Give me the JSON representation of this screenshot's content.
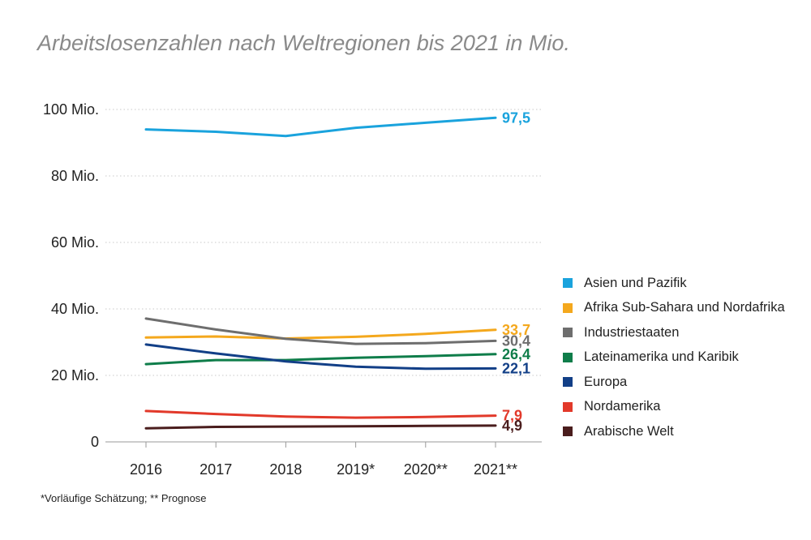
{
  "title": "Arbeitslosenzahlen nach Weltregionen bis 2021 in Mio.",
  "footnote": "*Vorläufige Schätzung; ** Prognose",
  "chart_data": {
    "type": "line",
    "title": "Arbeitslosenzahlen nach Weltregionen bis 2021 in Mio.",
    "xlabel": "",
    "ylabel": "",
    "categories": [
      "2016",
      "2017",
      "2018",
      "2019*",
      "2020**",
      "2021**"
    ],
    "ylim": [
      0,
      100
    ],
    "yticks": [
      {
        "value": 0,
        "label": "0"
      },
      {
        "value": 20,
        "label": "20 Mio."
      },
      {
        "value": 40,
        "label": "40 Mio."
      },
      {
        "value": 60,
        "label": "60 Mio."
      },
      {
        "value": 80,
        "label": "80 Mio."
      },
      {
        "value": 100,
        "label": "100 Mio."
      }
    ],
    "grid": true,
    "legend_position": "right",
    "series": [
      {
        "name": "Asien und Pazifik",
        "color": "#1aa3dd",
        "values": [
          94.0,
          93.3,
          92.0,
          94.5,
          96.0,
          97.5
        ],
        "end_label": "97,5"
      },
      {
        "name": "Afrika Sub-Sahara und Nordafrika",
        "color": "#f4a81d",
        "values": [
          31.4,
          31.7,
          31.1,
          31.6,
          32.5,
          33.7
        ],
        "end_label": "33,7"
      },
      {
        "name": "Industriestaaten",
        "color": "#6e6e6e",
        "values": [
          37.1,
          33.8,
          31.0,
          29.5,
          29.7,
          30.4
        ],
        "end_label": "30,4"
      },
      {
        "name": "Lateinamerika und Karibik",
        "color": "#0f7d4a",
        "values": [
          23.4,
          24.6,
          24.6,
          25.3,
          25.8,
          26.4
        ],
        "end_label": "26,4"
      },
      {
        "name": "Europa",
        "color": "#123f87",
        "values": [
          29.3,
          26.6,
          24.2,
          22.6,
          22.0,
          22.1
        ],
        "end_label": "22,1"
      },
      {
        "name": "Nordamerika",
        "color": "#e2392a",
        "values": [
          9.3,
          8.4,
          7.6,
          7.3,
          7.5,
          7.9
        ],
        "end_label": "7,9"
      },
      {
        "name": "Arabische Welt",
        "color": "#4a1d1d",
        "values": [
          4.1,
          4.5,
          4.6,
          4.7,
          4.8,
          4.9
        ],
        "end_label": "4,9"
      }
    ]
  }
}
